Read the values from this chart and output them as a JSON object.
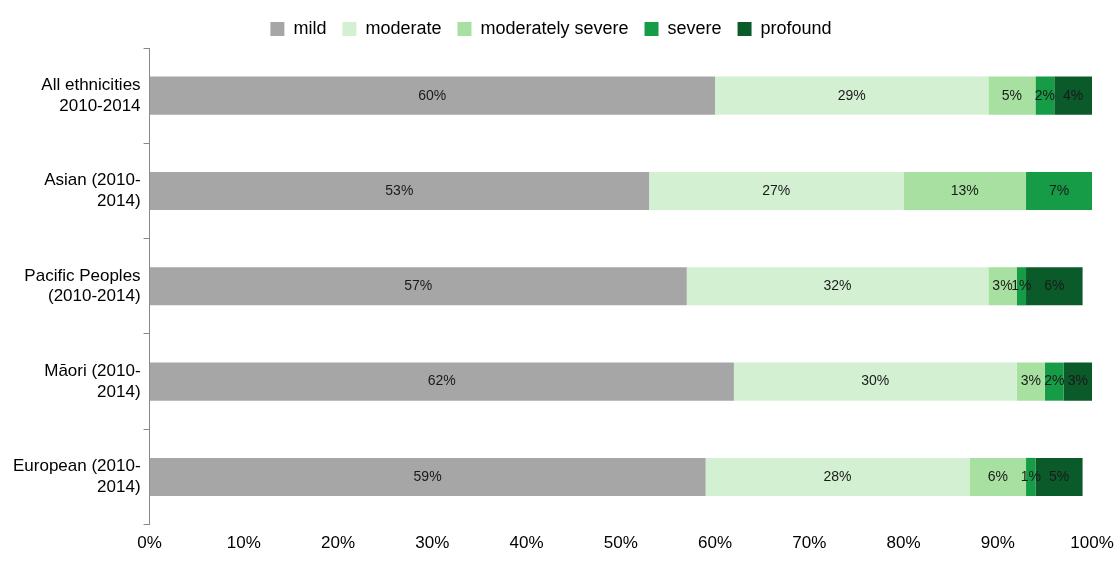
{
  "chart_data": {
    "type": "bar",
    "orientation": "horizontal",
    "stacked": true,
    "legend": "top",
    "grid": false,
    "categories": [
      "All ethnicities 2010-2014",
      "Asian (2010-2014)",
      "Pacific Peoples (2010-2014)",
      "Māori (2010-2014)",
      "European (2010-2014)"
    ],
    "xlim": [
      0,
      100
    ],
    "xticks": [
      {
        "value": 0,
        "label": "0%"
      },
      {
        "value": 10,
        "label": "10%"
      },
      {
        "value": 20,
        "label": "20%"
      },
      {
        "value": 30,
        "label": "30%"
      },
      {
        "value": 40,
        "label": "40%"
      },
      {
        "value": 50,
        "label": "50%"
      },
      {
        "value": 60,
        "label": "60%"
      },
      {
        "value": 70,
        "label": "70%"
      },
      {
        "value": 80,
        "label": "80%"
      },
      {
        "value": 90,
        "label": "90%"
      },
      {
        "value": 100,
        "label": "100%"
      }
    ],
    "series": [
      {
        "name": "mild",
        "color": "#a6a6a6",
        "values": [
          60,
          53,
          57,
          62,
          59
        ],
        "value_labels": [
          "60%",
          "53%",
          "57%",
          "62%",
          "59%"
        ]
      },
      {
        "name": "moderate",
        "color": "#d4f0d2",
        "values": [
          29,
          27,
          32,
          30,
          28
        ],
        "value_labels": [
          "29%",
          "27%",
          "32%",
          "30%",
          "28%"
        ]
      },
      {
        "name": "moderately severe",
        "color": "#a8e0a2",
        "values": [
          5,
          13,
          3,
          3,
          6
        ],
        "value_labels": [
          "5%",
          "13%",
          "3%",
          "3%",
          "6%"
        ]
      },
      {
        "name": "severe",
        "color": "#169b46",
        "values": [
          2,
          7,
          1,
          2,
          1
        ],
        "value_labels": [
          "2%",
          "7%",
          "1%",
          "2%",
          "1%"
        ]
      },
      {
        "name": "profound",
        "color": "#0b5a2a",
        "values": [
          4,
          null,
          6,
          3,
          5
        ],
        "value_labels": [
          "4%",
          null,
          "6%",
          "3%",
          "5%"
        ]
      }
    ]
  }
}
